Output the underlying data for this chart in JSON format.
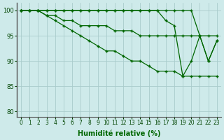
{
  "xlabel": "Humidité relative (%)",
  "bg_color": "#ceeaea",
  "grid_color": "#aacccc",
  "line_color": "#006600",
  "xlim": [
    -0.5,
    23.5
  ],
  "ylim": [
    79,
    101.5
  ],
  "yticks": [
    80,
    85,
    90,
    95,
    100
  ],
  "xticks": [
    0,
    1,
    2,
    3,
    4,
    5,
    6,
    7,
    8,
    9,
    10,
    11,
    12,
    13,
    14,
    15,
    16,
    17,
    18,
    19,
    20,
    21,
    22,
    23
  ],
  "series": [
    [
      100,
      100,
      100,
      100,
      100,
      100,
      100,
      100,
      100,
      100,
      100,
      100,
      100,
      100,
      100,
      100,
      100,
      100,
      100,
      100,
      100,
      95,
      90,
      94
    ],
    [
      100,
      100,
      100,
      100,
      100,
      100,
      100,
      100,
      100,
      100,
      100,
      100,
      100,
      100,
      100,
      100,
      100,
      98,
      97,
      87,
      90,
      95,
      90,
      94
    ],
    [
      100,
      100,
      100,
      99,
      99,
      98,
      98,
      97,
      97,
      97,
      97,
      96,
      96,
      96,
      95,
      95,
      95,
      95,
      95,
      95,
      95,
      95,
      95,
      95
    ],
    [
      100,
      100,
      100,
      99,
      98,
      97,
      96,
      95,
      94,
      93,
      92,
      92,
      91,
      90,
      90,
      89,
      88,
      88,
      88,
      87,
      87,
      87,
      87,
      87
    ]
  ]
}
